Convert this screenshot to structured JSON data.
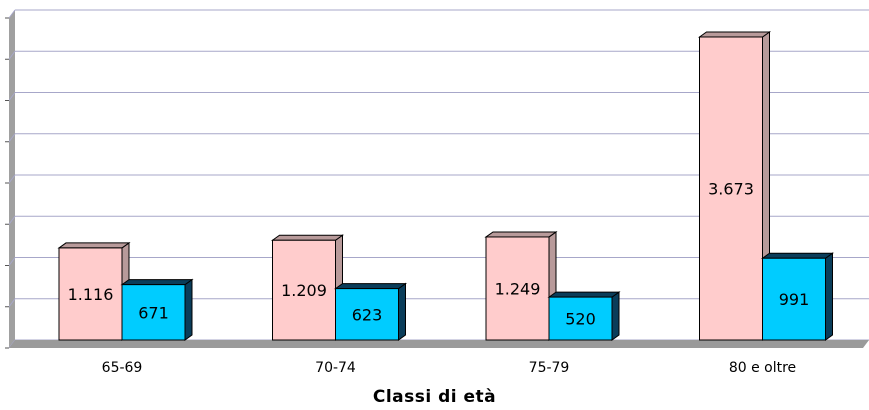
{
  "chart_data": {
    "type": "bar",
    "categories": [
      "65-69",
      "70-74",
      "75-79",
      "80 e oltre"
    ],
    "series": [
      {
        "values": [
          1116,
          1209,
          1249,
          3673
        ],
        "labels": [
          "1.116",
          "1.209",
          "1.249",
          "3.673"
        ],
        "color": "#FFCCCC",
        "side_color": "#B89A9A"
      },
      {
        "values": [
          671,
          623,
          520,
          991
        ],
        "labels": [
          "671",
          "623",
          "520",
          "991"
        ],
        "color": "#00CCFF",
        "side_color": "#0A3D5A"
      }
    ],
    "category_labels": [
      "65-69",
      "70-74",
      "75-79",
      "80 e oltre"
    ],
    "xlabel": "Classi di età",
    "ylabel": "",
    "ylim": [
      0,
      4000
    ],
    "grid": true,
    "legend": "none",
    "colors": {
      "grid": "#A7A7C9",
      "axis_wall": "#A0A0A0",
      "floor": "#9A9A9A"
    }
  }
}
